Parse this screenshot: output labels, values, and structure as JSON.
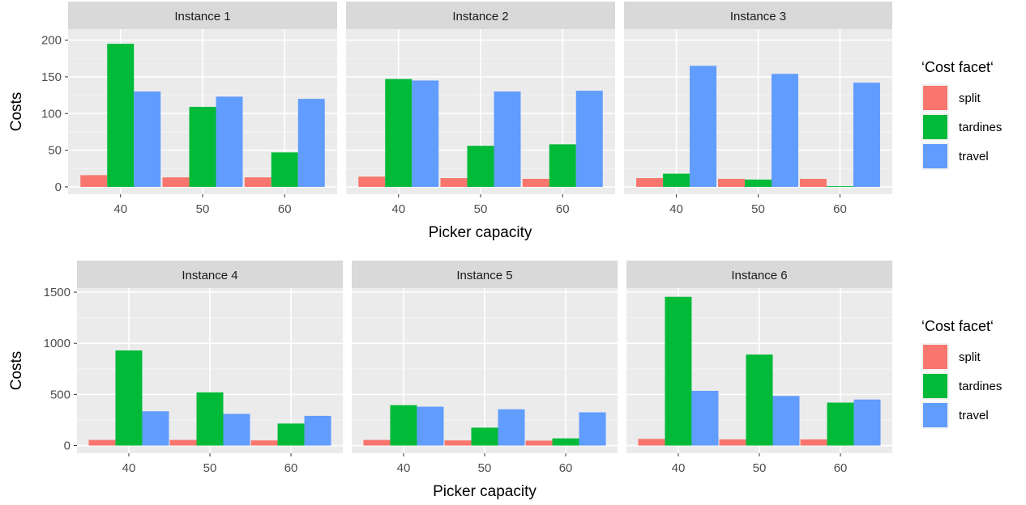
{
  "chart_data": [
    {
      "type": "bar",
      "xlabel": "Picker capacity",
      "ylabel": "Costs",
      "ylim": [
        -10,
        215
      ],
      "yticks": [
        0,
        50,
        100,
        150,
        200
      ],
      "categories": [
        "40",
        "50",
        "60"
      ],
      "legend": {
        "title": "‘Cost facet‘",
        "entries": [
          "split",
          "tardines",
          "travel"
        ],
        "colors": [
          "#F8766D",
          "#00BA38",
          "#619CFF"
        ],
        "position": "right"
      },
      "panels": [
        {
          "title": "Instance 1",
          "series": [
            {
              "name": "split",
              "values": [
                16,
                13,
                13
              ]
            },
            {
              "name": "tardines",
              "values": [
                195,
                109,
                47
              ]
            },
            {
              "name": "travel",
              "values": [
                130,
                123,
                120
              ]
            }
          ]
        },
        {
          "title": "Instance 2",
          "series": [
            {
              "name": "split",
              "values": [
                14,
                12,
                11
              ]
            },
            {
              "name": "tardines",
              "values": [
                147,
                56,
                58
              ]
            },
            {
              "name": "travel",
              "values": [
                145,
                130,
                131
              ]
            }
          ]
        },
        {
          "title": "Instance 3",
          "series": [
            {
              "name": "split",
              "values": [
                12,
                11,
                11
              ]
            },
            {
              "name": "tardines",
              "values": [
                18,
                10,
                1
              ]
            },
            {
              "name": "travel",
              "values": [
                165,
                154,
                142
              ]
            }
          ]
        }
      ]
    },
    {
      "type": "bar",
      "xlabel": "Picker capacity",
      "ylabel": "Costs",
      "ylim": [
        -75,
        1540
      ],
      "yticks": [
        0,
        500,
        1000,
        1500
      ],
      "categories": [
        "40",
        "50",
        "60"
      ],
      "legend": {
        "title": "‘Cost facet‘",
        "entries": [
          "split",
          "tardines",
          "travel"
        ],
        "colors": [
          "#F8766D",
          "#00BA38",
          "#619CFF"
        ],
        "position": "right"
      },
      "panels": [
        {
          "title": "Instance 4",
          "series": [
            {
              "name": "split",
              "values": [
                55,
                55,
                50
              ]
            },
            {
              "name": "tardines",
              "values": [
                930,
                520,
                215
              ]
            },
            {
              "name": "travel",
              "values": [
                335,
                310,
                290
              ]
            }
          ]
        },
        {
          "title": "Instance 5",
          "series": [
            {
              "name": "split",
              "values": [
                55,
                50,
                48
              ]
            },
            {
              "name": "tardines",
              "values": [
                395,
                175,
                70
              ]
            },
            {
              "name": "travel",
              "values": [
                380,
                355,
                325
              ]
            }
          ]
        },
        {
          "title": "Instance 6",
          "series": [
            {
              "name": "split",
              "values": [
                65,
                60,
                60
              ]
            },
            {
              "name": "tardines",
              "values": [
                1455,
                890,
                420
              ]
            },
            {
              "name": "travel",
              "values": [
                535,
                485,
                450
              ]
            }
          ]
        }
      ]
    }
  ]
}
